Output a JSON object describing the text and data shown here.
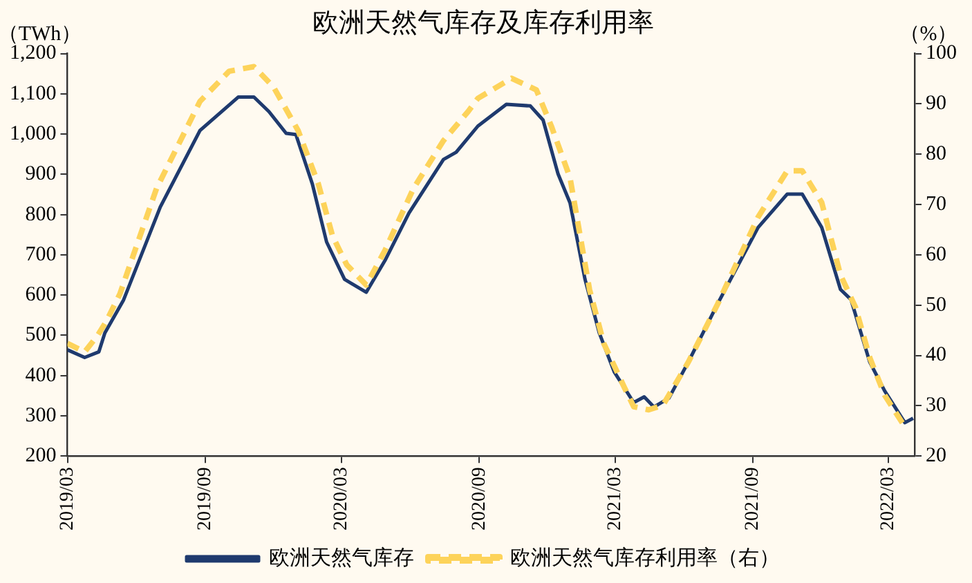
{
  "chart_data": {
    "type": "line",
    "title": "欧洲天然气库存及库存利用率",
    "ylabel": "（TWh）",
    "y2label": "（%）",
    "xlim": [
      "2019-03-01",
      "2022-04-05"
    ],
    "xticks": [
      {
        "value": "2019-03-01",
        "label": "2019/03"
      },
      {
        "value": "2019-09-01",
        "label": "2019/09"
      },
      {
        "value": "2020-03-01",
        "label": "2020/03"
      },
      {
        "value": "2020-09-01",
        "label": "2020/09"
      },
      {
        "value": "2021-03-01",
        "label": "2021/03"
      },
      {
        "value": "2021-09-01",
        "label": "2021/09"
      },
      {
        "value": "2022-03-01",
        "label": "2022/03"
      }
    ],
    "ylim": [
      200,
      1200
    ],
    "yticks": [
      200,
      300,
      400,
      500,
      600,
      700,
      800,
      900,
      {
        "value": 1000,
        "label": "1,000"
      },
      {
        "value": 1100,
        "label": "1,100"
      },
      {
        "value": 1200,
        "label": "1,200"
      }
    ],
    "y2lim": [
      20,
      100
    ],
    "y2ticks": [
      20,
      30,
      40,
      50,
      60,
      70,
      80,
      90,
      100
    ],
    "grid": false,
    "legend": "bottom",
    "marker": "none",
    "series": [
      {
        "name": "欧洲天然气库存",
        "color": "#1f3a6e",
        "line_style": "solid",
        "x": [
          "2019-03-01",
          "2019-03-24",
          "2019-04-12",
          "2019-04-20",
          "2019-05-15",
          "2019-07-03",
          "2019-08-25",
          "2019-10-15",
          "2019-11-05",
          "2019-11-25",
          "2019-12-18",
          "2019-12-31",
          "2020-01-22",
          "2020-02-10",
          "2020-03-05",
          "2020-04-03",
          "2020-04-28",
          "2020-05-30",
          "2020-07-15",
          "2020-08-01",
          "2020-08-30",
          "2020-10-07",
          "2020-11-08",
          "2020-11-25",
          "2020-12-15",
          "2020-12-31",
          "2021-01-20",
          "2021-02-08",
          "2021-02-28",
          "2021-03-26",
          "2021-04-09",
          "2021-04-22",
          "2021-05-12",
          "2021-06-07",
          "2021-07-16",
          "2021-09-08",
          "2021-10-17",
          "2021-11-06",
          "2021-12-02",
          "2021-12-27",
          "2022-01-10",
          "2022-02-04",
          "2022-02-24",
          "2022-03-23",
          "2022-04-03"
        ],
        "values": [
          464,
          445,
          459,
          506,
          588,
          819,
          1009,
          1092,
          1092,
          1056,
          1002,
          999,
          876,
          732,
          639,
          607,
          686,
          804,
          937,
          955,
          1020,
          1074,
          1070,
          1035,
          901,
          829,
          639,
          506,
          409,
          333,
          347,
          322,
          344,
          434,
          578,
          768,
          851,
          851,
          768,
          614,
          589,
          434,
          362,
          283,
          294
        ]
      },
      {
        "name": "欧洲天然气库存利用率（右）",
        "color": "#fdd35a",
        "line_style": "dashed",
        "axis": "y2",
        "x": [
          "2019-03-01",
          "2019-03-24",
          "2019-04-10",
          "2019-04-22",
          "2019-05-10",
          "2019-06-28",
          "2019-08-25",
          "2019-10-03",
          "2019-11-05",
          "2019-12-01",
          "2020-01-03",
          "2020-01-30",
          "2020-02-18",
          "2020-03-08",
          "2020-04-03",
          "2020-04-28",
          "2020-06-05",
          "2020-07-15",
          "2020-08-17",
          "2020-08-30",
          "2020-10-14",
          "2020-11-16",
          "2020-12-06",
          "2020-12-31",
          "2021-01-26",
          "2021-02-14",
          "2021-03-13",
          "2021-03-26",
          "2021-04-15",
          "2021-05-04",
          "2021-06-07",
          "2021-07-16",
          "2021-09-08",
          "2021-10-17",
          "2021-11-06",
          "2021-12-02",
          "2021-12-27",
          "2022-01-16",
          "2022-02-04",
          "2022-02-24",
          "2022-03-23"
        ],
        "values": [
          42.4,
          40.7,
          43.9,
          46.8,
          52.2,
          73.2,
          90.5,
          96.5,
          97.4,
          93.4,
          84.7,
          74.1,
          63.7,
          58.0,
          54.0,
          60.9,
          73.2,
          82.7,
          88.5,
          91.1,
          95.1,
          92.8,
          85.6,
          75.3,
          53.1,
          42.4,
          33.8,
          29.8,
          29.2,
          30.1,
          38.7,
          50.2,
          67.5,
          76.7,
          76.7,
          70.4,
          56.0,
          49.6,
          39.6,
          32.1,
          25.8
        ]
      }
    ]
  }
}
